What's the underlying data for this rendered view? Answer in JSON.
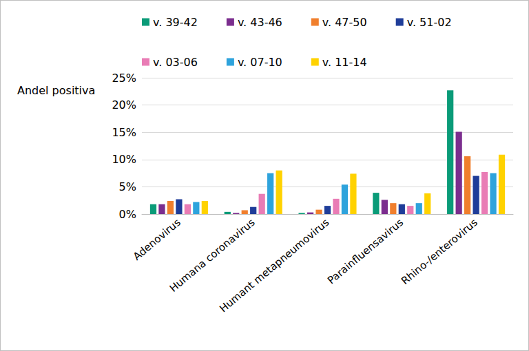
{
  "chart_data": {
    "type": "bar",
    "y_label": "Andel positiva",
    "categories": [
      "Adenovirus",
      "Humana coronavirus",
      "Humant metapneumovirus",
      "Parainfluensavirus",
      "Rhino-/enterovirus"
    ],
    "series": [
      {
        "name": "v. 39-42",
        "color": "#0a9b78",
        "values": [
          1.8,
          0.4,
          0.2,
          3.9,
          22.7
        ]
      },
      {
        "name": "v. 43-46",
        "color": "#7b2d8e",
        "values": [
          1.8,
          0.2,
          0.3,
          2.6,
          15.1
        ]
      },
      {
        "name": "v. 47-50",
        "color": "#f07f2d",
        "values": [
          2.4,
          0.7,
          0.8,
          2.0,
          10.6
        ]
      },
      {
        "name": "v. 51-02",
        "color": "#1f3d99",
        "values": [
          2.7,
          1.3,
          1.5,
          1.8,
          7.0
        ]
      },
      {
        "name": "v. 03-06",
        "color": "#e97cb5",
        "values": [
          1.8,
          3.7,
          2.8,
          1.5,
          7.7
        ]
      },
      {
        "name": "v. 07-10",
        "color": "#2ea3dc",
        "values": [
          2.2,
          7.5,
          5.4,
          2.0,
          7.5
        ]
      },
      {
        "name": "v. 11-14",
        "color": "#ffd200",
        "values": [
          2.4,
          8.0,
          7.4,
          3.8,
          10.9
        ]
      }
    ],
    "ylim": [
      0,
      25
    ],
    "yticks": [
      {
        "value": 0,
        "label": "0%"
      },
      {
        "value": 5,
        "label": "5%"
      },
      {
        "value": 10,
        "label": "10%"
      },
      {
        "value": 15,
        "label": "15%"
      },
      {
        "value": 20,
        "label": "20%"
      },
      {
        "value": 25,
        "label": "25%"
      }
    ],
    "grid": true,
    "legend": "top"
  }
}
